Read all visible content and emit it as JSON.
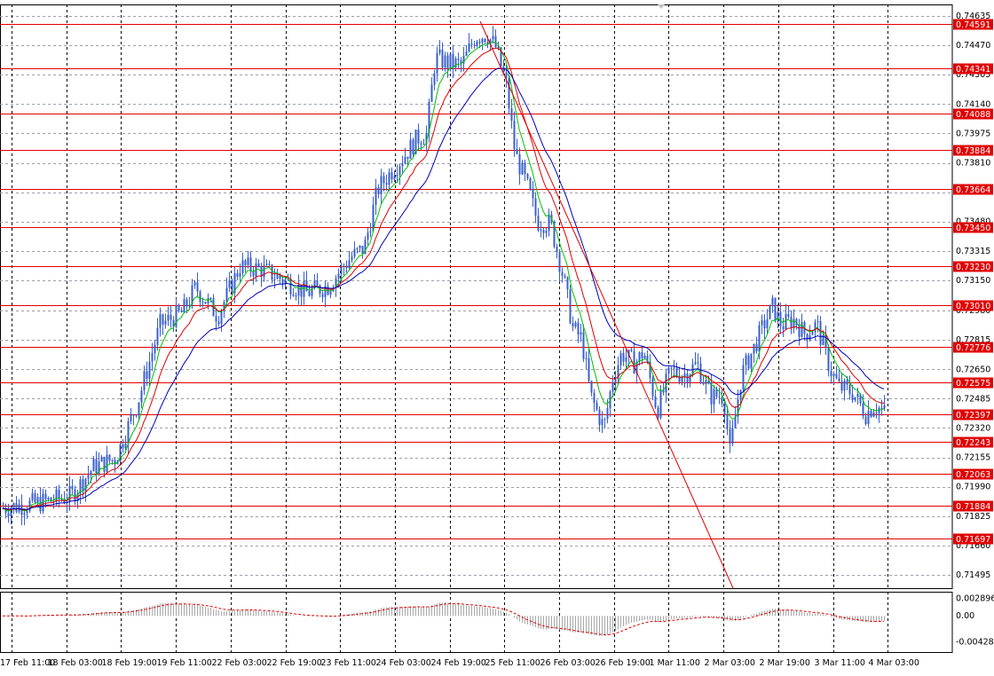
{
  "chart_data": {
    "type": "candlestick",
    "price_axis": {
      "ylim": [
        0.7142,
        0.747
      ],
      "ticks": [
        "0.74635",
        "0.74470",
        "0.74305",
        "0.74140",
        "0.73975",
        "0.73810",
        "0.73645",
        "0.73480",
        "0.73315",
        "0.73150",
        "0.72980",
        "0.72815",
        "0.72650",
        "0.72485",
        "0.72320",
        "0.72155",
        "0.71990",
        "0.71825",
        "0.71660",
        "0.71495"
      ]
    },
    "time_axis": {
      "labels": [
        "17 Feb 11:00",
        "18 Feb 03:00",
        "18 Feb 19:00",
        "19 Feb 11:00",
        "22 Feb 03:00",
        "22 Feb 19:00",
        "23 Feb 11:00",
        "24 Feb 03:00",
        "24 Feb 19:00",
        "25 Feb 11:00",
        "26 Feb 03:00",
        "26 Feb 19:00",
        "1 Mar 11:00",
        "2 Mar 03:00",
        "2 Mar 19:00",
        "3 Mar 11:00",
        "4 Mar 03:00"
      ]
    },
    "horizontal_levels": [
      "0.74591",
      "0.74341",
      "0.74088",
      "0.73884",
      "0.73664",
      "0.73450",
      "0.73230",
      "0.73010",
      "0.72776",
      "0.72575",
      "0.72397",
      "0.72243",
      "0.72063",
      "0.71884",
      "0.71697"
    ],
    "indicator": {
      "ticks": [
        "0.002896",
        "0.00",
        "-0.004286"
      ]
    },
    "series": [
      {
        "kind": "ma",
        "color": "#00c000"
      },
      {
        "kind": "ma",
        "color": "#e00000"
      },
      {
        "kind": "ma",
        "color": "#0000c0"
      }
    ],
    "trendline": {
      "color": "#e00000"
    },
    "grid": true,
    "colors": {
      "candle": "#3a5fcd",
      "level": "#e00000",
      "level_label_bg": "#e00000",
      "hist": "#a9a9a9",
      "signal": "#e00000"
    }
  }
}
